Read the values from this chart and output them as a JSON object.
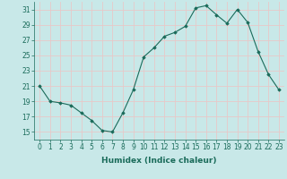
{
  "xlabel": "Humidex (Indice chaleur)",
  "x": [
    0,
    1,
    2,
    3,
    4,
    5,
    6,
    7,
    8,
    9,
    10,
    11,
    12,
    13,
    14,
    15,
    16,
    17,
    18,
    19,
    20,
    21,
    22,
    23
  ],
  "y": [
    21,
    19,
    18.8,
    18.5,
    17.5,
    16.5,
    15.2,
    15.0,
    17.5,
    20.5,
    24.8,
    26.0,
    27.5,
    28.0,
    28.8,
    31.2,
    31.5,
    30.3,
    29.2,
    31.0,
    29.3,
    25.5,
    22.5,
    20.5
  ],
  "ylim": [
    14,
    32
  ],
  "xlim": [
    -0.5,
    23.5
  ],
  "yticks": [
    15,
    17,
    19,
    21,
    23,
    25,
    27,
    29,
    31
  ],
  "xticks": [
    0,
    1,
    2,
    3,
    4,
    5,
    6,
    7,
    8,
    9,
    10,
    11,
    12,
    13,
    14,
    15,
    16,
    17,
    18,
    19,
    20,
    21,
    22,
    23
  ],
  "line_color": "#1a6b5a",
  "marker": "D",
  "marker_size": 1.8,
  "bg_color": "#c8e8e8",
  "grid_color": "#e8c8c8",
  "axis_label_fontsize": 6.5,
  "tick_fontsize": 5.5
}
